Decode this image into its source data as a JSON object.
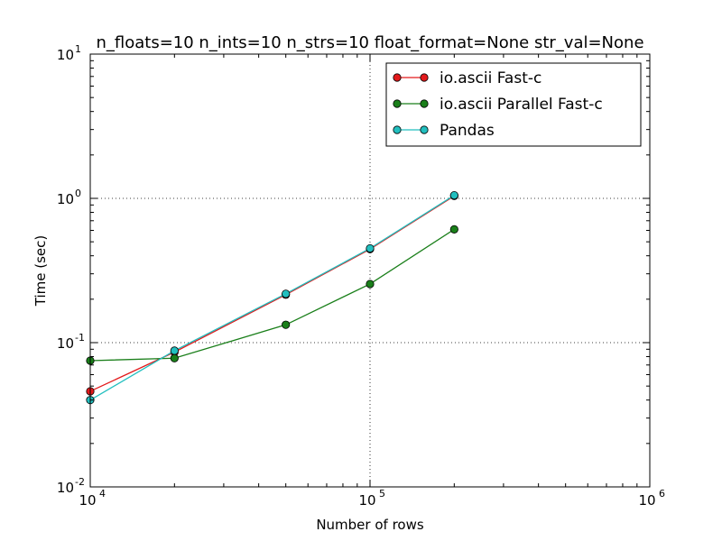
{
  "chart_data": {
    "type": "line",
    "title": "n_floats=10 n_ints=10 n_strs=10 float_format=None str_val=None",
    "xlabel": "Number of rows",
    "ylabel": "Time (sec)",
    "xscale": "log",
    "yscale": "log",
    "xlim": [
      10000,
      1000000
    ],
    "ylim": [
      0.01,
      10
    ],
    "x_ticks": [
      {
        "value": 10000,
        "base": "10",
        "exp": "4"
      },
      {
        "value": 100000,
        "base": "10",
        "exp": "5"
      },
      {
        "value": 1000000,
        "base": "10",
        "exp": "6"
      }
    ],
    "y_ticks": [
      {
        "value": 0.01,
        "base": "10",
        "exp": "-2"
      },
      {
        "value": 0.1,
        "base": "10",
        "exp": "-1"
      },
      {
        "value": 1,
        "base": "10",
        "exp": "0"
      },
      {
        "value": 10,
        "base": "10",
        "exp": "1"
      }
    ],
    "grid": true,
    "legend_position": "top-right",
    "x": [
      10000,
      20000,
      50000,
      100000,
      200000
    ],
    "series": [
      {
        "name": "io.ascii Fast-c",
        "color": "#e31a1c",
        "values": [
          0.046,
          0.086,
          0.215,
          0.445,
          1.04
        ]
      },
      {
        "name": "io.ascii Parallel Fast-c",
        "color": "#1a7f1a",
        "values": [
          0.075,
          0.078,
          0.133,
          0.255,
          0.61
        ]
      },
      {
        "name": "Pandas",
        "color": "#22bfbf",
        "values": [
          0.04,
          0.088,
          0.218,
          0.45,
          1.05
        ]
      }
    ]
  }
}
